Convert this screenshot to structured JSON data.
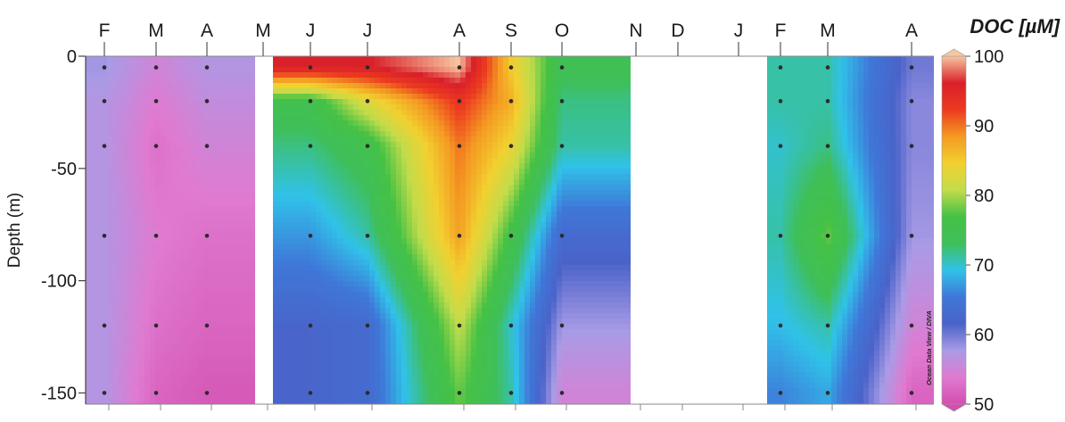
{
  "chart_data": {
    "type": "heatmap",
    "title": "",
    "xlabel": "",
    "ylabel": "Depth (m)",
    "y_ticks": [
      0,
      -50,
      -100,
      -150
    ],
    "ylim": [
      -155,
      0
    ],
    "x_month_labels": [
      "F",
      "M",
      "A",
      "M",
      "J",
      "J",
      "A",
      "S",
      "O",
      "N",
      "D",
      "J",
      "F",
      "M",
      "A"
    ],
    "sample_depths": [
      -5,
      -20,
      -40,
      -80,
      -120,
      -150
    ],
    "colorbar": {
      "title": "DOC [µM]",
      "min": 50,
      "max": 100,
      "ticks": [
        100,
        90,
        80,
        70,
        60,
        50
      ],
      "stops": [
        "#d24fb0",
        "#e07ad0",
        "#a99be6",
        "#4a63c9",
        "#3f77d8",
        "#30c2e9",
        "#3fbf5a",
        "#45c145",
        "#c2dc4a",
        "#f2d030",
        "#f49a22",
        "#ec3a20",
        "#d9202a",
        "#f7c6a0"
      ]
    },
    "segments": [
      {
        "months": [
          "F",
          "M",
          "A"
        ],
        "values": [
          [
            58,
            55,
            57
          ],
          [
            57,
            54,
            56
          ],
          [
            57,
            53,
            55
          ],
          [
            57,
            54,
            53
          ],
          [
            57,
            53,
            52
          ],
          [
            57,
            52,
            51
          ]
        ]
      },
      {
        "months": [
          "J",
          "J",
          "A",
          "S",
          "O"
        ],
        "values": [
          [
            96,
            96,
            100,
            85,
            74
          ],
          [
            75,
            83,
            93,
            87,
            72
          ],
          [
            72,
            75,
            90,
            84,
            71
          ],
          [
            67,
            71,
            88,
            76,
            63
          ],
          [
            62,
            63,
            81,
            70,
            58
          ],
          [
            62,
            63,
            78,
            71,
            55
          ]
        ]
      },
      {
        "months": [
          "F",
          "M",
          "A"
        ],
        "values": [
          [
            71,
            71,
            60
          ],
          [
            71,
            71,
            59
          ],
          [
            70,
            72,
            59
          ],
          [
            71,
            78,
            58
          ],
          [
            69,
            71,
            55
          ],
          [
            66,
            68,
            52
          ]
        ]
      }
    ],
    "gaps": [
      "M",
      "N-D-J"
    ],
    "watermark": "Ocean Data View / DIVA"
  }
}
